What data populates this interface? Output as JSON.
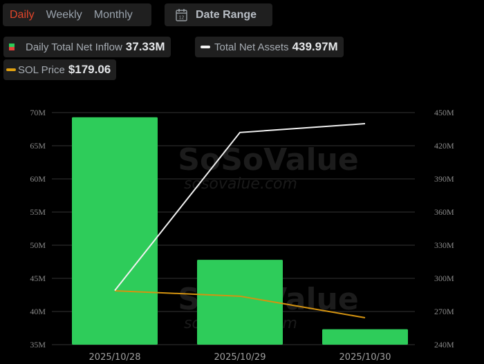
{
  "tabs": {
    "items": [
      {
        "label": "Daily",
        "active": true
      },
      {
        "label": "Weekly",
        "active": false
      },
      {
        "label": "Monthly",
        "active": false
      }
    ]
  },
  "date_range": {
    "label": "Date Range",
    "icon": "calendar-icon",
    "icon_day": "12"
  },
  "legend": {
    "inflow": {
      "label": "Daily Total Net Inflow",
      "value": "37.33M",
      "colors": [
        "#2ecc5a",
        "#e5403a"
      ]
    },
    "assets": {
      "label": "Total Net Assets",
      "value": "439.97M",
      "color": "#f2f2f2"
    },
    "price": {
      "label": "SOL Price",
      "value": "$179.06",
      "color": "#e0a010"
    }
  },
  "watermark": {
    "brand": "SoSoValue",
    "url": "sosovalue.com"
  },
  "colors": {
    "bar": "#2ecc5a",
    "assets_line": "#f2f2f2",
    "price_line": "#d49310",
    "grid": "#333333",
    "tick_text": "#8a8a8a",
    "tab_active": "#e2462b"
  },
  "chart_data": {
    "type": "bar",
    "title": "",
    "categories": [
      "2025/10/28",
      "2025/10/29",
      "2025/10/30"
    ],
    "series": [
      {
        "name": "Daily Total Net Inflow",
        "type": "bar",
        "axis": "left",
        "values": [
          69.3,
          47.8,
          37.33
        ],
        "color": "#2ecc5a"
      },
      {
        "name": "Total Net Assets",
        "type": "line",
        "axis": "right",
        "values": [
          289,
          432,
          439.97
        ],
        "color": "#f2f2f2"
      },
      {
        "name": "SOL Price",
        "type": "line",
        "axis": "hidden",
        "values": [
          199,
          195,
          179.06
        ],
        "color": "#e0a010"
      }
    ],
    "y_left": {
      "ticks": [
        "70M",
        "65M",
        "60M",
        "55M",
        "50M",
        "45M",
        "40M",
        "35M"
      ],
      "range": [
        35,
        70
      ]
    },
    "y_right": {
      "ticks": [
        "450M",
        "420M",
        "390M",
        "360M",
        "330M",
        "300M",
        "270M",
        "240M"
      ],
      "range": [
        240,
        450
      ]
    },
    "xlabel": "",
    "ylabel": "",
    "grid": true,
    "legend_position": "top"
  }
}
